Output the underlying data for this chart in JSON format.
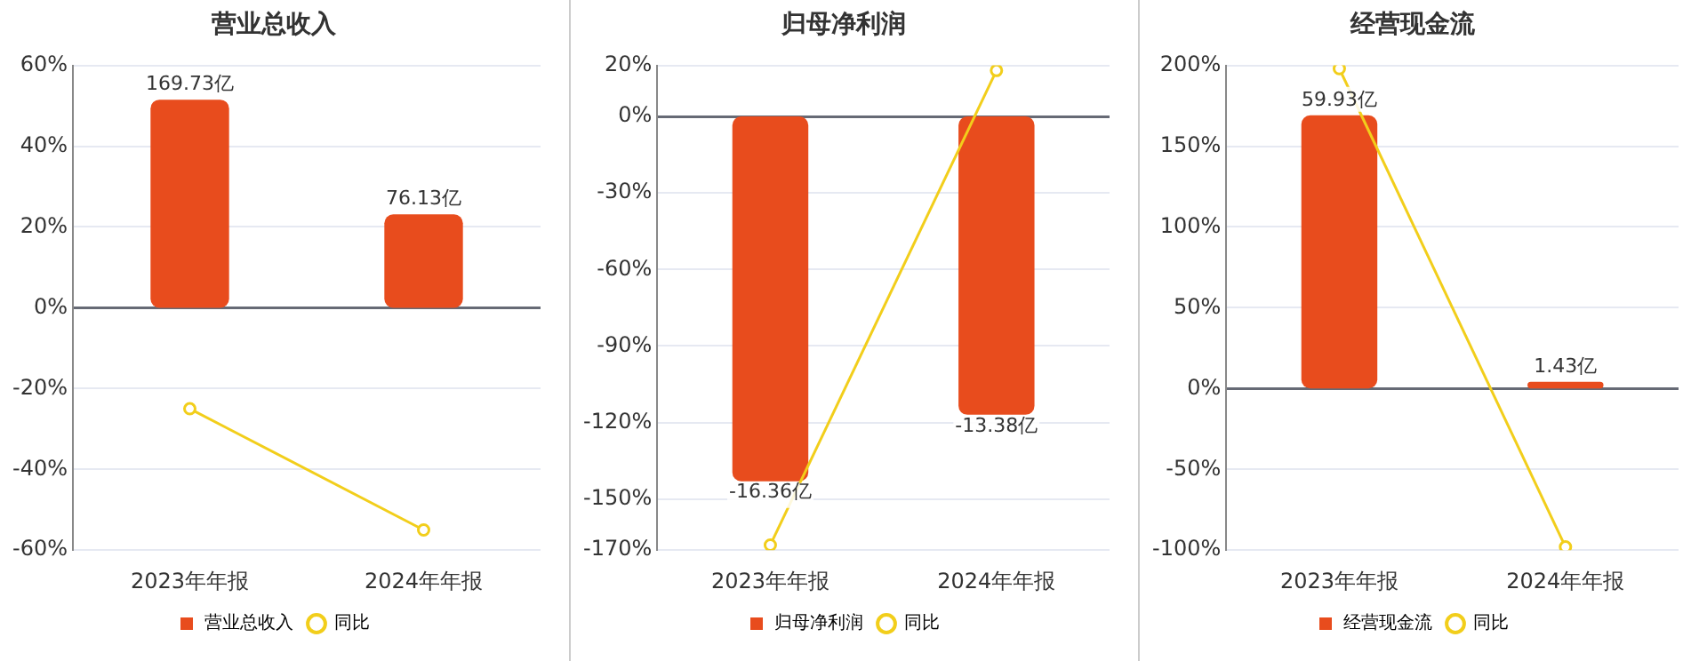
{
  "chart_data": [
    {
      "type": "bar",
      "title": "营业总收入",
      "categories": [
        "2023年年报",
        "2024年年报"
      ],
      "grid": "y",
      "legend": "bottom",
      "ylim": [
        -60,
        60
      ],
      "yticks": [
        {
          "value": -60,
          "label": "-60%"
        },
        {
          "value": -40,
          "label": "-40%"
        },
        {
          "value": -20,
          "label": "-20%"
        },
        {
          "value": 0,
          "label": "0%"
        },
        {
          "value": 20,
          "label": "20%"
        },
        {
          "value": 40,
          "label": "40%"
        },
        {
          "value": 60,
          "label": "60%"
        }
      ],
      "y2lim": [
        -197.7,
        197.7
      ],
      "tick_labels": "xy",
      "series": [
        {
          "name": "营业总收入",
          "axis": "y2",
          "color": "#e84c1d",
          "values": [
            169.73,
            76.13
          ],
          "value_labels": [
            "169.73亿",
            "76.13亿"
          ]
        },
        {
          "name": "同比",
          "type": "line",
          "color": "#f2ce1b",
          "marker": "circle",
          "values": [
            -25,
            -55
          ]
        }
      ]
    },
    {
      "type": "bar",
      "title": "归母净利润",
      "categories": [
        "2023年年报",
        "2024年年报"
      ],
      "grid": "y",
      "legend": "bottom",
      "ylim": [
        -170,
        20
      ],
      "yticks": [
        {
          "value": -170,
          "label": "-170%"
        },
        {
          "value": -150,
          "label": "-150%"
        },
        {
          "value": -120,
          "label": "-120%"
        },
        {
          "value": -90,
          "label": "-90%"
        },
        {
          "value": -60,
          "label": "-60%"
        },
        {
          "value": -30,
          "label": "-30%"
        },
        {
          "value": 0,
          "label": "0%"
        },
        {
          "value": 20,
          "label": "20%"
        }
      ],
      "y2lim": [
        -19.45,
        2.29
      ],
      "tick_labels": "xy",
      "series": [
        {
          "name": "归母净利润",
          "axis": "y2",
          "color": "#e84c1d",
          "values": [
            -16.36,
            -13.38
          ],
          "value_labels": [
            "-16.36亿",
            "-13.38亿"
          ]
        },
        {
          "name": "同比",
          "type": "line",
          "color": "#f2ce1b",
          "marker": "circle",
          "values": [
            -168,
            18
          ]
        }
      ]
    },
    {
      "type": "bar",
      "title": "经营现金流",
      "categories": [
        "2023年年报",
        "2024年年报"
      ],
      "grid": "y",
      "legend": "bottom",
      "ylim": [
        -100,
        200
      ],
      "yticks": [
        {
          "value": -100,
          "label": "-100%"
        },
        {
          "value": -50,
          "label": "-50%"
        },
        {
          "value": 0,
          "label": "0%"
        },
        {
          "value": 50,
          "label": "50%"
        },
        {
          "value": 100,
          "label": "100%"
        },
        {
          "value": 150,
          "label": "150%"
        },
        {
          "value": 200,
          "label": "200%"
        }
      ],
      "y2lim": [
        -35.5,
        70.9
      ],
      "tick_labels": "xy",
      "series": [
        {
          "name": "经营现金流",
          "axis": "y2",
          "color": "#e84c1d",
          "values": [
            59.93,
            1.43
          ],
          "value_labels": [
            "59.93亿",
            "1.43亿"
          ]
        },
        {
          "name": "同比",
          "type": "line",
          "color": "#f2ce1b",
          "marker": "circle",
          "values": [
            198,
            -98
          ]
        }
      ]
    }
  ]
}
